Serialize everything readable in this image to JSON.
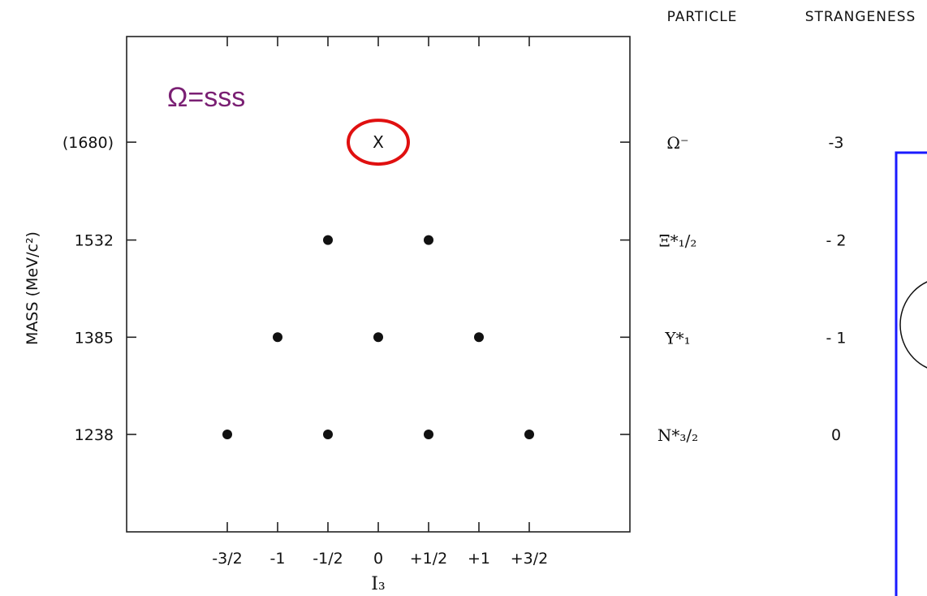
{
  "headers": {
    "particle": "PARTICLE",
    "strangeness": "STRANGENESS"
  },
  "annotation": {
    "text": "Ω=sss",
    "color": "#7a1f73"
  },
  "highlight_color": "#e01010",
  "box_color": "#1a1aff",
  "chart_data": {
    "type": "scatter",
    "xlabel": "I₃",
    "ylabel": "MASS (MeV/c²)",
    "x_ticks": [
      -1.5,
      -1,
      -0.5,
      0,
      0.5,
      1,
      1.5
    ],
    "x_tick_labels": [
      "-3/2",
      "-1",
      "-1/2",
      "0",
      "+1/2",
      "+1",
      "+3/2"
    ],
    "y_ticks": [
      1238,
      1385,
      1532,
      1680
    ],
    "y_tick_labels": [
      "1238",
      "1385",
      "1532",
      "(1680)"
    ],
    "xlim": [
      -2.5,
      2.5
    ],
    "ylim": [
      1100,
      1820
    ],
    "points": [
      {
        "x": -1.5,
        "y": 1238
      },
      {
        "x": -0.5,
        "y": 1238
      },
      {
        "x": 0.5,
        "y": 1238
      },
      {
        "x": 1.5,
        "y": 1238
      },
      {
        "x": -1,
        "y": 1385
      },
      {
        "x": 0,
        "y": 1385
      },
      {
        "x": 1,
        "y": 1385
      },
      {
        "x": -0.5,
        "y": 1532
      },
      {
        "x": 0.5,
        "y": 1532
      }
    ],
    "predicted": [
      {
        "x": 0,
        "y": 1680,
        "marker": "X"
      }
    ],
    "rows": [
      {
        "mass": 1680,
        "particle": "Ω⁻",
        "strangeness": "-3"
      },
      {
        "mass": 1532,
        "particle": "Ξ*₁/₂",
        "strangeness": "- 2"
      },
      {
        "mass": 1385,
        "particle": "Y*₁",
        "strangeness": "- 1"
      },
      {
        "mass": 1238,
        "particle": "N*₃/₂",
        "strangeness": "0"
      }
    ]
  }
}
